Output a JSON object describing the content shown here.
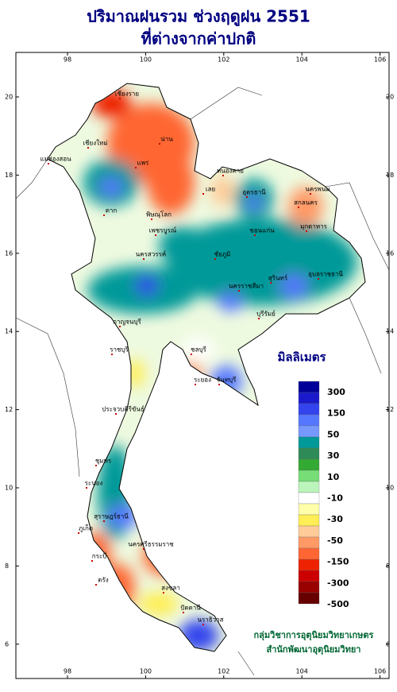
{
  "title": {
    "line1": "ปริมาณฝนรวม ช่วงฤดูฝน 2551",
    "line2": "ที่ต่างจากค่าปกติ"
  },
  "map": {
    "lon_ticks": [
      98,
      100,
      102,
      104,
      106
    ],
    "lat_ticks": [
      6,
      8,
      10,
      12,
      14,
      16,
      18,
      20
    ],
    "places": [
      "เชียงราย",
      "เชียงใหม่",
      "น่าน",
      "แพร่",
      "แม่ฮ่องสอน",
      "ตาก",
      "พิษณุโลก",
      "เลย",
      "หนองคาย",
      "อุดรธานี",
      "นครพนม",
      "สกลนคร",
      "ขอนแก่น",
      "มุกดาหาร",
      "เพชรบูรณ์",
      "นครสวรรค์",
      "ชัยภูมิ",
      "นครราชสีมา",
      "บุรีรัมย์",
      "สุรินทร์",
      "อุบลราชธานี",
      "กาญจนบุรี",
      "ราชบุรี",
      "ชลบุรี",
      "ระยอง",
      "จันทบุรี",
      "ประจวบคีรีขันธ์",
      "ชุมพร",
      "ระนอง",
      "สุราษฎร์ธานี",
      "ภูเก็ต",
      "กระบี่",
      "นครศรีธรรมราช",
      "ตรัง",
      "สงขลา",
      "ปัตตานี",
      "นราธิวาส"
    ]
  },
  "legend": {
    "title": "มิลลิเมตร",
    "colors": [
      "#000099",
      "#1a1acc",
      "#3344ee",
      "#5577ff",
      "#7799ff",
      "#009999",
      "#2e8b57",
      "#33aa33",
      "#77dd77",
      "#bbf5bb",
      "#ffffff",
      "#ffffaa",
      "#ffee55",
      "#ffcc99",
      "#ff9966",
      "#ff6633",
      "#ee2200",
      "#cc0000",
      "#990000",
      "#660000"
    ],
    "labels": [
      300,
      150,
      50,
      30,
      10,
      -10,
      -30,
      -50,
      -150,
      -300,
      -500
    ]
  },
  "footer": {
    "line1": "กลุ่มวิชาการอุตุนิยมวิทยาเกษตร",
    "line2": "สำนักพัฒนาอุตุนิยมวิทยา"
  }
}
